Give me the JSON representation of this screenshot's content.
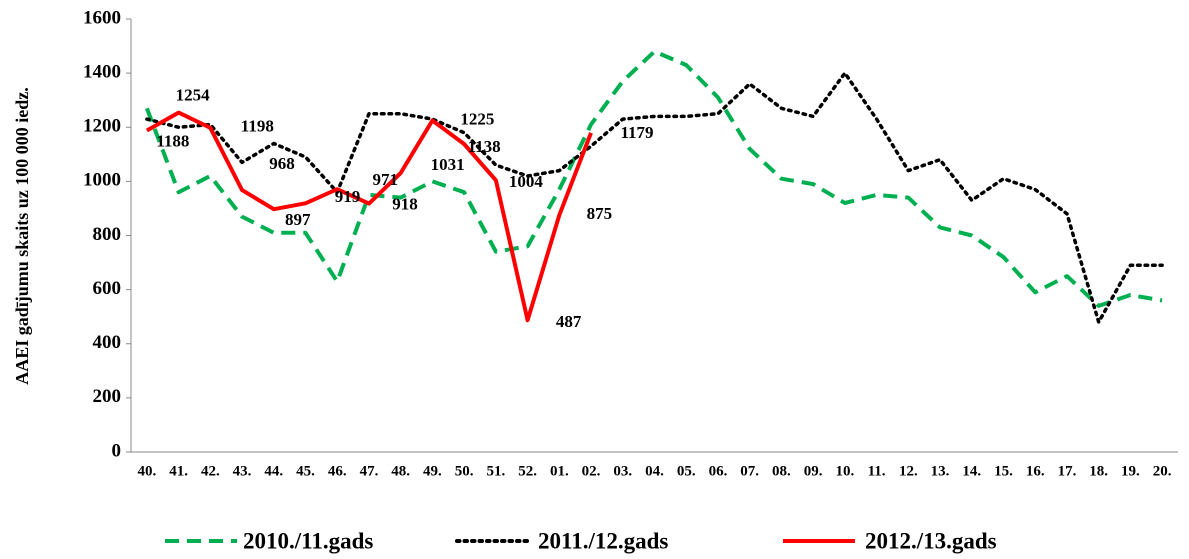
{
  "chart_data": {
    "type": "line",
    "y_label": "AAEI gadījumu skaits uz 100 000 iedz.",
    "categories": [
      "40.",
      "41.",
      "42.",
      "43.",
      "44.",
      "45.",
      "46.",
      "47.",
      "48.",
      "49.",
      "50.",
      "51.",
      "52.",
      "01.",
      "02.",
      "03.",
      "04.",
      "05.",
      "06.",
      "07.",
      "08.",
      "09.",
      "10.",
      "11.",
      "12.",
      "13.",
      "14.",
      "15.",
      "16.",
      "17.",
      "18.",
      "19.",
      "20."
    ],
    "series": [
      {
        "name": "2010./11.gads",
        "color": "#00b050",
        "dash": "dashed",
        "values": [
          1270,
          960,
          1020,
          870,
          810,
          810,
          630,
          950,
          940,
          1000,
          960,
          740,
          760,
          970,
          1210,
          1370,
          1480,
          1430,
          1310,
          1120,
          1010,
          990,
          920,
          950,
          940,
          830,
          800,
          720,
          590,
          650,
          540,
          580,
          560
        ]
      },
      {
        "name": "2011./12.gads",
        "color": "#000000",
        "dash": "dotted",
        "values": [
          1230,
          1200,
          1210,
          1070,
          1140,
          1090,
          960,
          1250,
          1250,
          1230,
          1180,
          1060,
          1020,
          1040,
          1130,
          1230,
          1240,
          1240,
          1250,
          1360,
          1270,
          1240,
          1400,
          1230,
          1040,
          1080,
          930,
          1010,
          970,
          880,
          480,
          690,
          690
        ]
      },
      {
        "name": "2012./13.gads",
        "color": "#ff0000",
        "dash": "solid",
        "data_labels": true,
        "values": [
          1188,
          1254,
          1198,
          968,
          897,
          919,
          971,
          918,
          1031,
          1225,
          1138,
          1004,
          487,
          875,
          1179,
          null,
          null,
          null,
          null,
          null,
          null,
          null,
          null,
          null,
          null,
          null,
          null,
          null,
          null,
          null,
          null,
          null,
          null
        ]
      }
    ],
    "ylim": [
      0,
      1600
    ],
    "yticks": [
      0,
      200,
      400,
      600,
      800,
      1000,
      1200,
      1400,
      1600
    ],
    "grid": false,
    "legend": "bottom"
  }
}
